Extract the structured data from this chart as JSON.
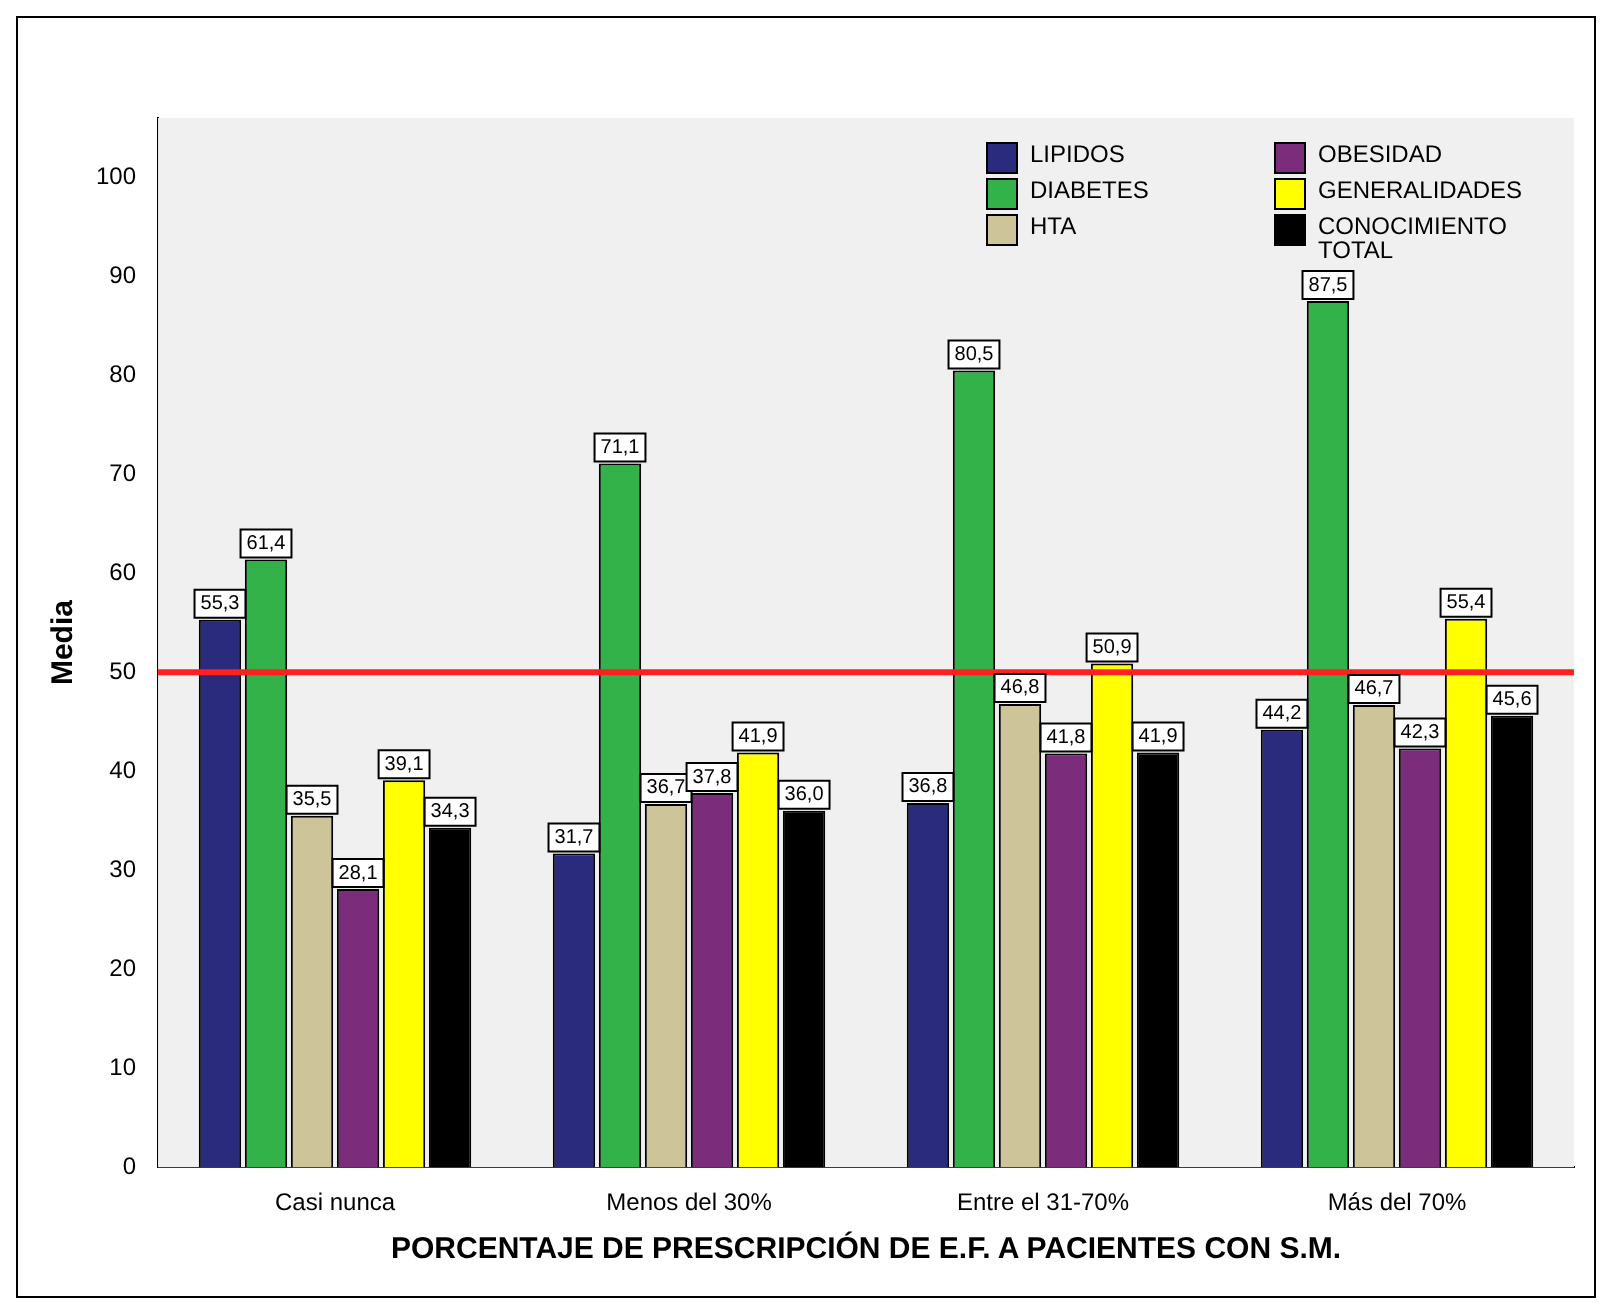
{
  "chart_data": {
    "type": "bar",
    "xlabel": "PORCENTAJE DE PRESCRIPCIÓN DE E.F. A PACIENTES CON S.M.",
    "ylabel": "Media",
    "categories": [
      "Casi nunca",
      "Menos del 30%",
      "Entre el 31-70%",
      "Más del 70%"
    ],
    "series": [
      {
        "name": "LIPIDOS",
        "color": "#2b2b7d",
        "values": [
          55.3,
          31.7,
          36.8,
          44.2
        ],
        "value_labels": [
          "55,3",
          "31,7",
          "36,8",
          "44,2"
        ]
      },
      {
        "name": "DIABETES",
        "color": "#33b24a",
        "values": [
          61.4,
          71.1,
          80.5,
          87.5
        ],
        "value_labels": [
          "61,4",
          "71,1",
          "80,5",
          "87,5"
        ]
      },
      {
        "name": "HTA",
        "color": "#cdc49a",
        "values": [
          35.5,
          36.7,
          46.8,
          46.7
        ],
        "value_labels": [
          "35,5",
          "36,7",
          "46,8",
          "46,7"
        ]
      },
      {
        "name": "OBESIDAD",
        "color": "#7b2c7b",
        "values": [
          28.1,
          37.8,
          41.8,
          42.3
        ],
        "value_labels": [
          "28,1",
          "37,8",
          "41,8",
          "42,3"
        ]
      },
      {
        "name": "GENERALIDADES",
        "color": "#ffff00",
        "values": [
          39.1,
          41.9,
          50.9,
          55.4
        ],
        "value_labels": [
          "39,1",
          "41,9",
          "50,9",
          "55,4"
        ]
      },
      {
        "name": "CONOCIMIENTO TOTAL",
        "color": "#000000",
        "values": [
          34.3,
          36.0,
          41.9,
          45.6
        ],
        "value_labels": [
          "34,3",
          "36,0",
          "41,9",
          "45,6"
        ]
      }
    ],
    "ylim": [
      0,
      106
    ],
    "yticks": [
      0,
      10,
      20,
      30,
      40,
      50,
      60,
      70,
      80,
      90,
      100
    ],
    "grid": false,
    "legend": "top right",
    "ref_lines": [
      {
        "axis": "y",
        "value": 50,
        "color": "#ff2020"
      }
    ]
  }
}
